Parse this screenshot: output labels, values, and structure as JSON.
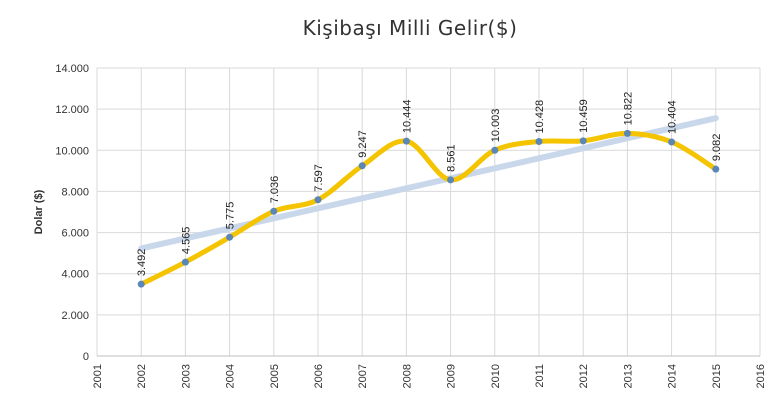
{
  "chart_data": {
    "type": "line",
    "title": "Kişibaşı Milli Gelir($)",
    "xlabel": "",
    "ylabel": "Dolar ($)",
    "xlim": [
      2001,
      2016
    ],
    "ylim": [
      0,
      14000
    ],
    "x_ticks": [
      "2001",
      "2002",
      "2003",
      "2004",
      "2005",
      "2006",
      "2007",
      "2008",
      "2009",
      "2010",
      "2011",
      "2012",
      "2013",
      "2014",
      "2015",
      "2016"
    ],
    "y_ticks": [
      "0",
      "2.000",
      "4.000",
      "6.000",
      "8.000",
      "10.000",
      "12.000",
      "14.000"
    ],
    "y_tick_values": [
      0,
      2000,
      4000,
      6000,
      8000,
      10000,
      12000,
      14000
    ],
    "grid": true,
    "series": [
      {
        "x": [
          2002,
          2003,
          2004,
          2005,
          2006,
          2007,
          2008,
          2009,
          2010,
          2011,
          2012,
          2013,
          2014,
          2015
        ],
        "values": [
          3492,
          4565,
          5775,
          7036,
          7597,
          9247,
          10444,
          8561,
          10003,
          10428,
          10459,
          10822,
          10404,
          9082
        ],
        "labels": [
          "3.492",
          "4.565",
          "5.775",
          "7.036",
          "7.597",
          "9.247",
          "10.444",
          "8.561",
          "10.003",
          "10.428",
          "10.459",
          "10.822",
          "10.404",
          "9.082"
        ],
        "line_color": "#f5c400",
        "marker_color": "#5b87b8"
      }
    ],
    "trendline": {
      "x": [
        2002,
        2015
      ],
      "values": [
        5230,
        11560
      ],
      "color": "#c9d7ea"
    }
  }
}
